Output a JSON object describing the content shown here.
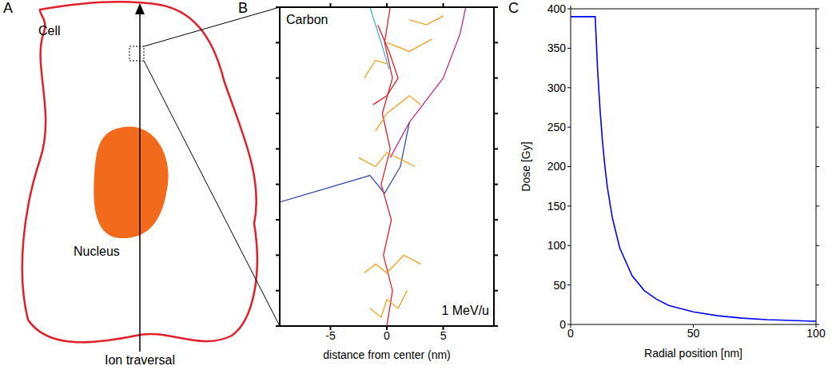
{
  "panel_labels": [
    "A",
    "B",
    "C"
  ],
  "diagram": {
    "cell_label": "Cell",
    "nucleus_label": "Nucleus",
    "arrow_label": "Ion traversal"
  },
  "chart_data": [
    {
      "type": "line",
      "annotations": [
        "Carbon",
        "1 MeV/u"
      ],
      "x_label": "distance from center (nm)",
      "xlim": [
        -9.5,
        9.5
      ],
      "xticks": [
        -5,
        0,
        5
      ],
      "ylim": [
        0,
        18
      ],
      "yticks": [
        0,
        2,
        4,
        6,
        8,
        10,
        12,
        14,
        16,
        18
      ],
      "tick_labels": "x",
      "series": [
        {
          "color": "#c0308f",
          "x": [
            0.3,
            2,
            5,
            6.5,
            7
          ],
          "y": [
            9.5,
            11.5,
            14,
            16.5,
            18
          ]
        },
        {
          "color": "#3a4fb0",
          "x": [
            -9.5,
            -1.5,
            -0.2,
            1.2,
            2
          ],
          "y": [
            7,
            8.5,
            7.5,
            9,
            11.5
          ]
        },
        {
          "color": "#3cb4d8",
          "x": [
            -1.5,
            -0.5,
            0.2
          ],
          "y": [
            18,
            16,
            14.5
          ]
        },
        {
          "color": "#e0202a",
          "x": [
            0,
            0.5,
            -0.3,
            0.4,
            -0.5,
            0.3,
            -0.4,
            0.5,
            -0.2,
            0.3
          ],
          "y": [
            0,
            2,
            4,
            6,
            8,
            10,
            12,
            14,
            16,
            18
          ]
        },
        {
          "color": "#e0202a",
          "x": [
            -1.2,
            0,
            1,
            0.2,
            -0.8
          ],
          "y": [
            12.5,
            13,
            14,
            15.5,
            17
          ]
        },
        {
          "color": "#f2a020",
          "x": [
            -2,
            -1,
            0,
            1.5,
            3
          ],
          "y": [
            3,
            3.5,
            3,
            4,
            3.5
          ]
        },
        {
          "color": "#f2a020",
          "x": [
            -1,
            0,
            2,
            3
          ],
          "y": [
            11,
            12,
            13,
            12.5
          ]
        },
        {
          "color": "#f2a020",
          "x": [
            0,
            2,
            4
          ],
          "y": [
            16,
            15.5,
            16.2
          ]
        },
        {
          "color": "#f2a020",
          "x": [
            -2,
            -1,
            0
          ],
          "y": [
            14,
            15,
            14.8
          ]
        },
        {
          "color": "#f2a020",
          "x": [
            -1.5,
            -0.5,
            0,
            1,
            1.8
          ],
          "y": [
            1,
            0.5,
            1.5,
            1,
            2
          ]
        },
        {
          "color": "#f2a020",
          "x": [
            -2.5,
            -1,
            0,
            2.5
          ],
          "y": [
            9.5,
            9,
            9.8,
            9
          ]
        },
        {
          "color": "#f2a020",
          "x": [
            2,
            3.5,
            5
          ],
          "y": [
            17.3,
            17,
            17.5
          ]
        }
      ]
    },
    {
      "type": "line",
      "x_label": "Radial position [nm]",
      "y_label": "Dose [Gy]",
      "x": [
        0,
        10,
        11,
        12,
        13,
        14,
        15,
        17,
        20,
        25,
        30,
        35,
        40,
        50,
        60,
        70,
        80,
        90,
        100
      ],
      "values": [
        390,
        390,
        322,
        271,
        231,
        199,
        173,
        135,
        97,
        62,
        43,
        32,
        24,
        16,
        11,
        8,
        6,
        5,
        4
      ],
      "color": "#0000ff",
      "xlim": [
        0,
        100
      ],
      "xticks": [
        0,
        50,
        100
      ],
      "ylim": [
        0,
        400
      ],
      "yticks": [
        0,
        50,
        100,
        150,
        200,
        250,
        300,
        350,
        400
      ]
    }
  ]
}
